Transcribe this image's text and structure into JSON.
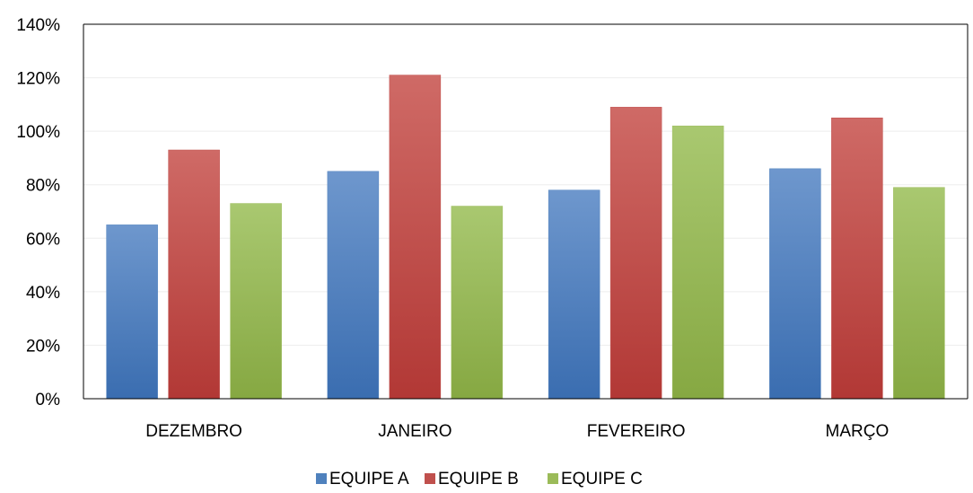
{
  "chart_data": {
    "type": "bar",
    "categories": [
      "DEZEMBRO",
      "JANEIRO",
      "FEVEREIRO",
      "MARÇO"
    ],
    "series": [
      {
        "name": "EQUIPE A",
        "color": "#4F81BD",
        "values": [
          0.65,
          0.85,
          0.78,
          0.86
        ]
      },
      {
        "name": "EQUIPE B",
        "color": "#C0504D",
        "values": [
          0.93,
          1.21,
          1.09,
          1.05
        ]
      },
      {
        "name": "EQUIPE C",
        "color": "#9BBB59",
        "values": [
          0.73,
          0.72,
          1.02,
          0.79
        ]
      }
    ],
    "ylim": [
      0,
      1.4
    ],
    "yticks": [
      "0%",
      "20%",
      "40%",
      "60%",
      "80%",
      "100%",
      "120%",
      "140%"
    ],
    "grid": true,
    "legend_position": "bottom"
  }
}
